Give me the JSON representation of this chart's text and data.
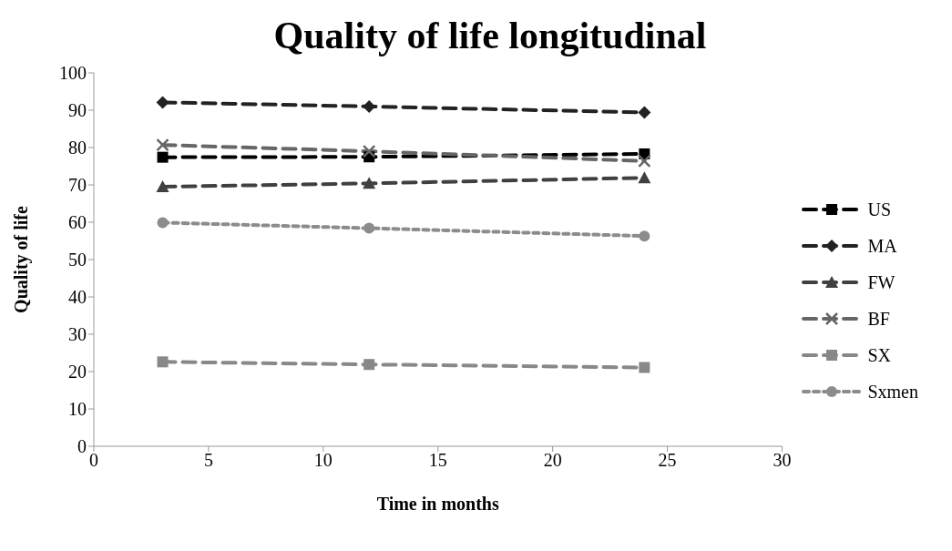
{
  "chart_data": {
    "type": "line",
    "title": "Quality of life longitudinal",
    "xlabel": "Time in months",
    "ylabel": "Quality of life",
    "x": [
      3,
      12,
      24
    ],
    "xlim": [
      0,
      30
    ],
    "xticks": [
      0,
      5,
      10,
      15,
      20,
      25,
      30
    ],
    "ylim": [
      0,
      100
    ],
    "yticks": [
      0,
      10,
      20,
      30,
      40,
      50,
      60,
      70,
      80,
      90,
      100
    ],
    "grid": false,
    "legend": "right",
    "series": [
      {
        "name": "US",
        "color": "#000000",
        "marker": "square",
        "line_style": "dashed",
        "values": [
          77.4,
          77.5,
          78.3
        ]
      },
      {
        "name": "MA",
        "color": "#222222",
        "marker": "diamond",
        "line_style": "dashed",
        "values": [
          92.1,
          91.0,
          89.4
        ]
      },
      {
        "name": "FW",
        "color": "#404040",
        "marker": "triangle",
        "line_style": "dashed",
        "values": [
          69.5,
          70.4,
          71.9
        ]
      },
      {
        "name": "BF",
        "color": "#666666",
        "marker": "cross",
        "line_style": "dashed",
        "values": [
          80.7,
          79.0,
          76.4
        ]
      },
      {
        "name": "SX",
        "color": "#888888",
        "marker": "square",
        "line_style": "dashed",
        "values": [
          22.6,
          21.9,
          21.1
        ]
      },
      {
        "name": "Sxmen",
        "color": "#8c8c8c",
        "marker": "circle",
        "line_style": "dotted",
        "values": [
          59.9,
          58.4,
          56.3
        ]
      }
    ]
  }
}
